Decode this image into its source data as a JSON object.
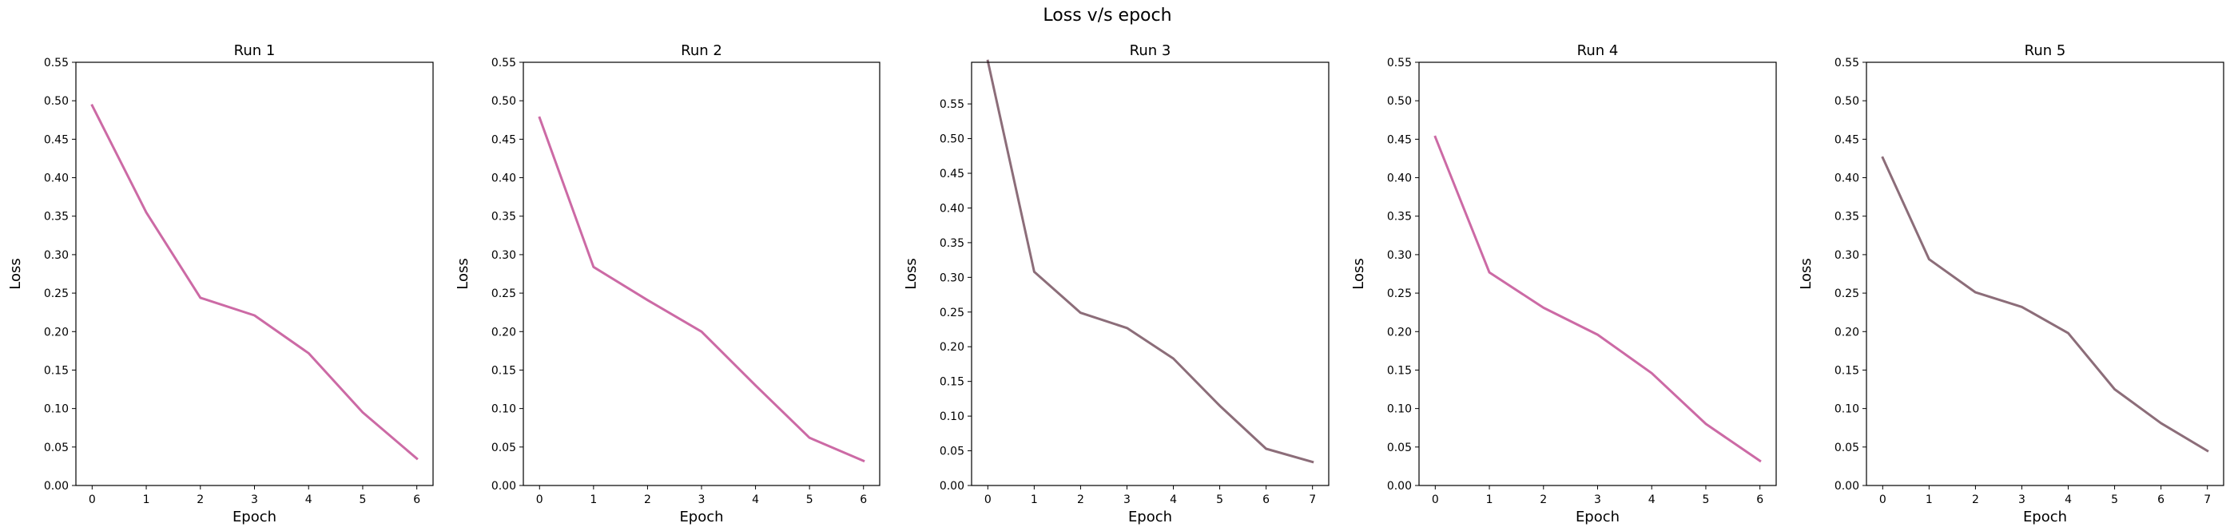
{
  "figure": {
    "suptitle": "Loss v/s epoch"
  },
  "chart_data": [
    {
      "type": "line",
      "title": "Run 1",
      "xlabel": "Epoch",
      "ylabel": "Loss",
      "xlim": [
        -0.3,
        6.3
      ],
      "ylim": [
        0,
        0.55
      ],
      "xticks": [
        0,
        1,
        2,
        3,
        4,
        5,
        6
      ],
      "yticks": [
        0,
        0.05,
        0.1,
        0.15,
        0.2,
        0.25,
        0.3,
        0.35,
        0.4,
        0.45,
        0.5,
        0.55
      ],
      "grid": false,
      "color": "#cc6aa5",
      "series": [
        {
          "x": [
            0,
            1,
            2,
            3,
            4,
            5,
            6
          ],
          "values": [
            0.494,
            0.355,
            0.244,
            0.221,
            0.172,
            0.095,
            0.035
          ]
        }
      ]
    },
    {
      "type": "line",
      "title": "Run 2",
      "xlabel": "Epoch",
      "ylabel": "Loss",
      "xlim": [
        -0.3,
        6.3
      ],
      "ylim": [
        0,
        0.55
      ],
      "xticks": [
        0,
        1,
        2,
        3,
        4,
        5,
        6
      ],
      "yticks": [
        0,
        0.05,
        0.1,
        0.15,
        0.2,
        0.25,
        0.3,
        0.35,
        0.4,
        0.45,
        0.5,
        0.55
      ],
      "grid": false,
      "color": "#cc6aa5",
      "series": [
        {
          "x": [
            0,
            1,
            2,
            3,
            4,
            5,
            6
          ],
          "values": [
            0.478,
            0.284,
            0.241,
            0.2,
            0.13,
            0.062,
            0.032
          ]
        }
      ]
    },
    {
      "type": "line",
      "title": "Run 3",
      "xlabel": "Epoch",
      "ylabel": "Loss",
      "xlim": [
        -0.35,
        7.35
      ],
      "ylim": [
        0,
        0.61
      ],
      "xticks": [
        0,
        1,
        2,
        3,
        4,
        5,
        6,
        7
      ],
      "yticks": [
        0,
        0.05,
        0.1,
        0.15,
        0.2,
        0.25,
        0.3,
        0.35,
        0.4,
        0.45,
        0.5,
        0.55
      ],
      "grid": false,
      "color": "#8c6d79",
      "series": [
        {
          "x": [
            0,
            1,
            2,
            3,
            4,
            5,
            6,
            7
          ],
          "values": [
            0.612,
            0.308,
            0.249,
            0.227,
            0.183,
            0.115,
            0.053,
            0.034
          ]
        }
      ]
    },
    {
      "type": "line",
      "title": "Run 4",
      "xlabel": "Epoch",
      "ylabel": "Loss",
      "xlim": [
        -0.3,
        6.3
      ],
      "ylim": [
        0,
        0.55
      ],
      "xticks": [
        0,
        1,
        2,
        3,
        4,
        5,
        6
      ],
      "yticks": [
        0,
        0.05,
        0.1,
        0.15,
        0.2,
        0.25,
        0.3,
        0.35,
        0.4,
        0.45,
        0.5,
        0.55
      ],
      "grid": false,
      "color": "#cc6aa5",
      "series": [
        {
          "x": [
            0,
            1,
            2,
            3,
            4,
            5,
            6
          ],
          "values": [
            0.453,
            0.277,
            0.231,
            0.196,
            0.146,
            0.08,
            0.032
          ]
        }
      ]
    },
    {
      "type": "line",
      "title": "Run 5",
      "xlabel": "Epoch",
      "ylabel": "Loss",
      "xlim": [
        -0.35,
        7.35
      ],
      "ylim": [
        0,
        0.55
      ],
      "xticks": [
        0,
        1,
        2,
        3,
        4,
        5,
        6,
        7
      ],
      "yticks": [
        0,
        0.05,
        0.1,
        0.15,
        0.2,
        0.25,
        0.3,
        0.35,
        0.4,
        0.45,
        0.5,
        0.55
      ],
      "grid": false,
      "color": "#8c6d79",
      "series": [
        {
          "x": [
            0,
            1,
            2,
            3,
            4,
            5,
            6,
            7
          ],
          "values": [
            0.426,
            0.294,
            0.251,
            0.232,
            0.198,
            0.125,
            0.081,
            0.045
          ]
        }
      ]
    }
  ]
}
